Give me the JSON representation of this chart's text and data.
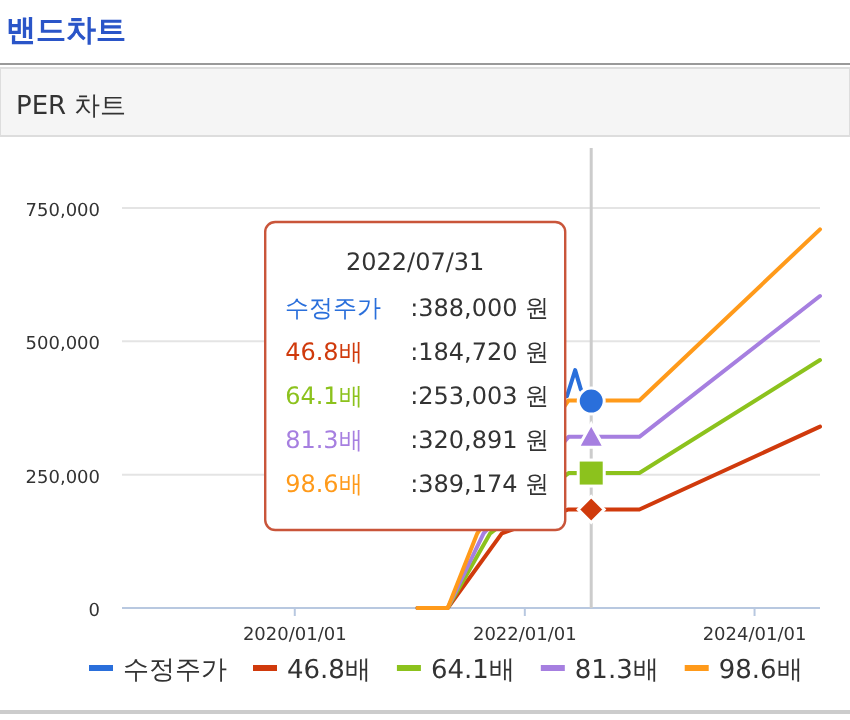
{
  "chart_data": {
    "type": "line",
    "title": "밴드차트",
    "subtitle": "PER 차트",
    "xlim": [
      "2018-07-01",
      "2024-07-27"
    ],
    "ylim": [
      0,
      750000
    ],
    "xticks": [
      {
        "value": "2020-01-01",
        "label": "2020/01/01"
      },
      {
        "value": "2022-01-01",
        "label": "2022/01/01"
      },
      {
        "value": "2024-01-01",
        "label": "2024/01/01"
      }
    ],
    "yticks": [
      0,
      {
        "value": 250000,
        "label": "250,000"
      },
      {
        "value": 500000,
        "label": "500,000"
      },
      {
        "value": 750000,
        "label": "750,000"
      }
    ],
    "grid": "y",
    "legend": "bottom",
    "ref_lines": [
      {
        "axis": "x",
        "value": "2022-07-31",
        "color": "#cccccc"
      }
    ],
    "series": [
      {
        "name": "수정주가",
        "color": "#2a6fdb",
        "x": [
          "2022-05-15",
          "2022-06-10",
          "2022-06-28",
          "2022-07-31"
        ],
        "values": [
          397000,
          446000,
          410000,
          388000
        ]
      },
      {
        "name": "46.8배",
        "color": "#d03a0c",
        "x": [
          "2021-01-25",
          "2021-05-01",
          "2021-10-20",
          "2022-05-20",
          "2022-12-31",
          "2024-07-27"
        ],
        "values": [
          0,
          0,
          140000,
          184720,
          184720,
          340000
        ]
      },
      {
        "name": "64.1배",
        "color": "#8cc21d",
        "x": [
          "2021-01-25",
          "2021-05-01",
          "2021-09-13",
          "2022-05-20",
          "2022-12-31",
          "2024-07-27"
        ],
        "values": [
          0,
          0,
          140000,
          253003,
          253003,
          465000
        ]
      },
      {
        "name": "81.3배",
        "color": "#a67fe0",
        "x": [
          "2021-01-25",
          "2021-05-01",
          "2021-08-23",
          "2022-05-20",
          "2022-12-31",
          "2024-07-27"
        ],
        "values": [
          0,
          0,
          140000,
          320891,
          320891,
          585000
        ]
      },
      {
        "name": "98.6배",
        "color": "#ff9a1a",
        "x": [
          "2021-01-25",
          "2021-05-01",
          "2021-08-03",
          "2022-05-20",
          "2022-12-31",
          "2024-07-27"
        ],
        "values": [
          0,
          0,
          140000,
          389174,
          389174,
          710000
        ]
      },
      {
        "type": "scatter",
        "marker": "circle",
        "color": "#2a6fdb",
        "x": [
          "2022-07-31"
        ],
        "values": [
          388000
        ]
      },
      {
        "type": "scatter",
        "marker": "triangle",
        "color": "#a67fe0",
        "x": [
          "2022-07-31"
        ],
        "values": [
          320891
        ]
      },
      {
        "type": "scatter",
        "marker": "square",
        "color": "#8cc21d",
        "x": [
          "2022-07-31"
        ],
        "values": [
          253003
        ]
      },
      {
        "type": "scatter",
        "marker": "diamond",
        "color": "#d03a0c",
        "x": [
          "2022-07-31"
        ],
        "values": [
          184720
        ]
      }
    ],
    "annotations": [
      "2022/07/31",
      "수정주가",
      ":388,000 원",
      "46.8배",
      ":184,720 원",
      "64.1배",
      ":253,003 원",
      "81.3배",
      ":320,891 원",
      "98.6배",
      ":389,174 원"
    ]
  }
}
